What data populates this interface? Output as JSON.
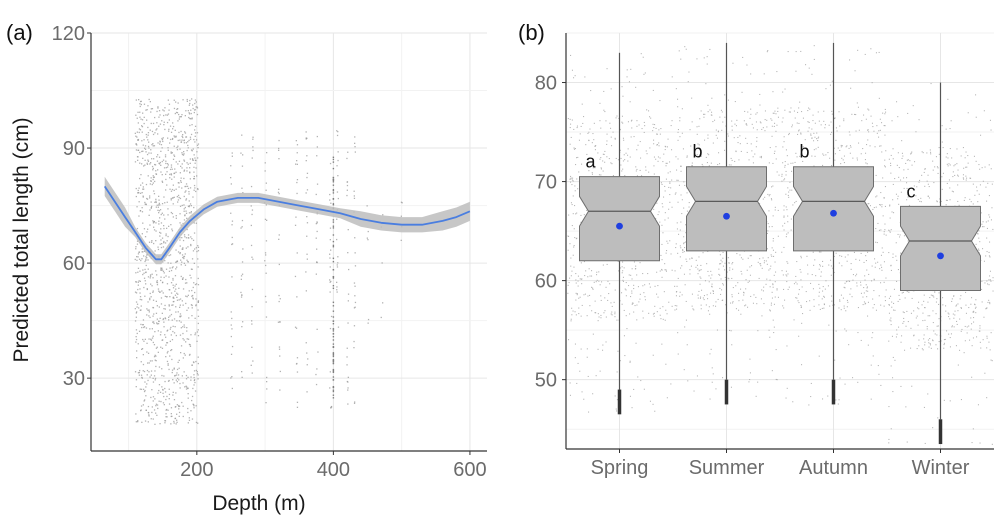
{
  "chart_data": [
    {
      "panel_label": "(a)",
      "type": "scatter",
      "xlabel": "Depth (m)",
      "ylabel": "Predicted total length (cm)",
      "xlim": [
        45,
        625
      ],
      "ylim": [
        11,
        120
      ],
      "xticks": [
        200,
        400,
        600
      ],
      "yticks": [
        30,
        60,
        90,
        120
      ],
      "grid": true,
      "smooth_line": {
        "color": "#4a7ee0",
        "band_color": "#bdbdbd",
        "x": [
          65,
          80,
          95,
          110,
          125,
          140,
          148,
          160,
          175,
          190,
          210,
          230,
          260,
          290,
          320,
          350,
          380,
          410,
          440,
          470,
          500,
          530,
          560,
          580,
          600
        ],
        "y": [
          80,
          76,
          72,
          68,
          64,
          61,
          61,
          64,
          68,
          71,
          74,
          76,
          77,
          77,
          76,
          75,
          74,
          73,
          71.5,
          70.5,
          70,
          70,
          71,
          72,
          73.5
        ]
      },
      "points_color": "#9a9a9a"
    },
    {
      "panel_label": "(b)",
      "type": "box",
      "categories": [
        "Spring",
        "Summer",
        "Autumn",
        "Winter"
      ],
      "ylim": [
        43,
        85
      ],
      "yticks": [
        50,
        60,
        70,
        80
      ],
      "grid": true,
      "box_fill": "#bdbdbd",
      "mean_color": "#1f3fe0",
      "boxes": [
        {
          "category": "Spring",
          "letter": "a",
          "whisker_low": 46.5,
          "q1": 62,
          "median": 67,
          "q3": 70.5,
          "whisker_high": 83,
          "mean": 65.5,
          "notch_low": 65.5,
          "notch_high": 68.5
        },
        {
          "category": "Summer",
          "letter": "b",
          "whisker_low": 47.5,
          "q1": 63,
          "median": 68,
          "q3": 71.5,
          "whisker_high": 84,
          "mean": 66.5,
          "notch_low": 66.5,
          "notch_high": 69.5
        },
        {
          "category": "Autumn",
          "letter": "b",
          "whisker_low": 47.5,
          "q1": 63,
          "median": 68,
          "q3": 71.5,
          "whisker_high": 84,
          "mean": 66.8,
          "notch_low": 66.5,
          "notch_high": 69.5
        },
        {
          "category": "Winter",
          "letter": "c",
          "whisker_low": 43.5,
          "q1": 59,
          "median": 64,
          "q3": 67.5,
          "whisker_high": 80,
          "mean": 62.5,
          "notch_low": 62.5,
          "notch_high": 65.5
        }
      ]
    }
  ]
}
